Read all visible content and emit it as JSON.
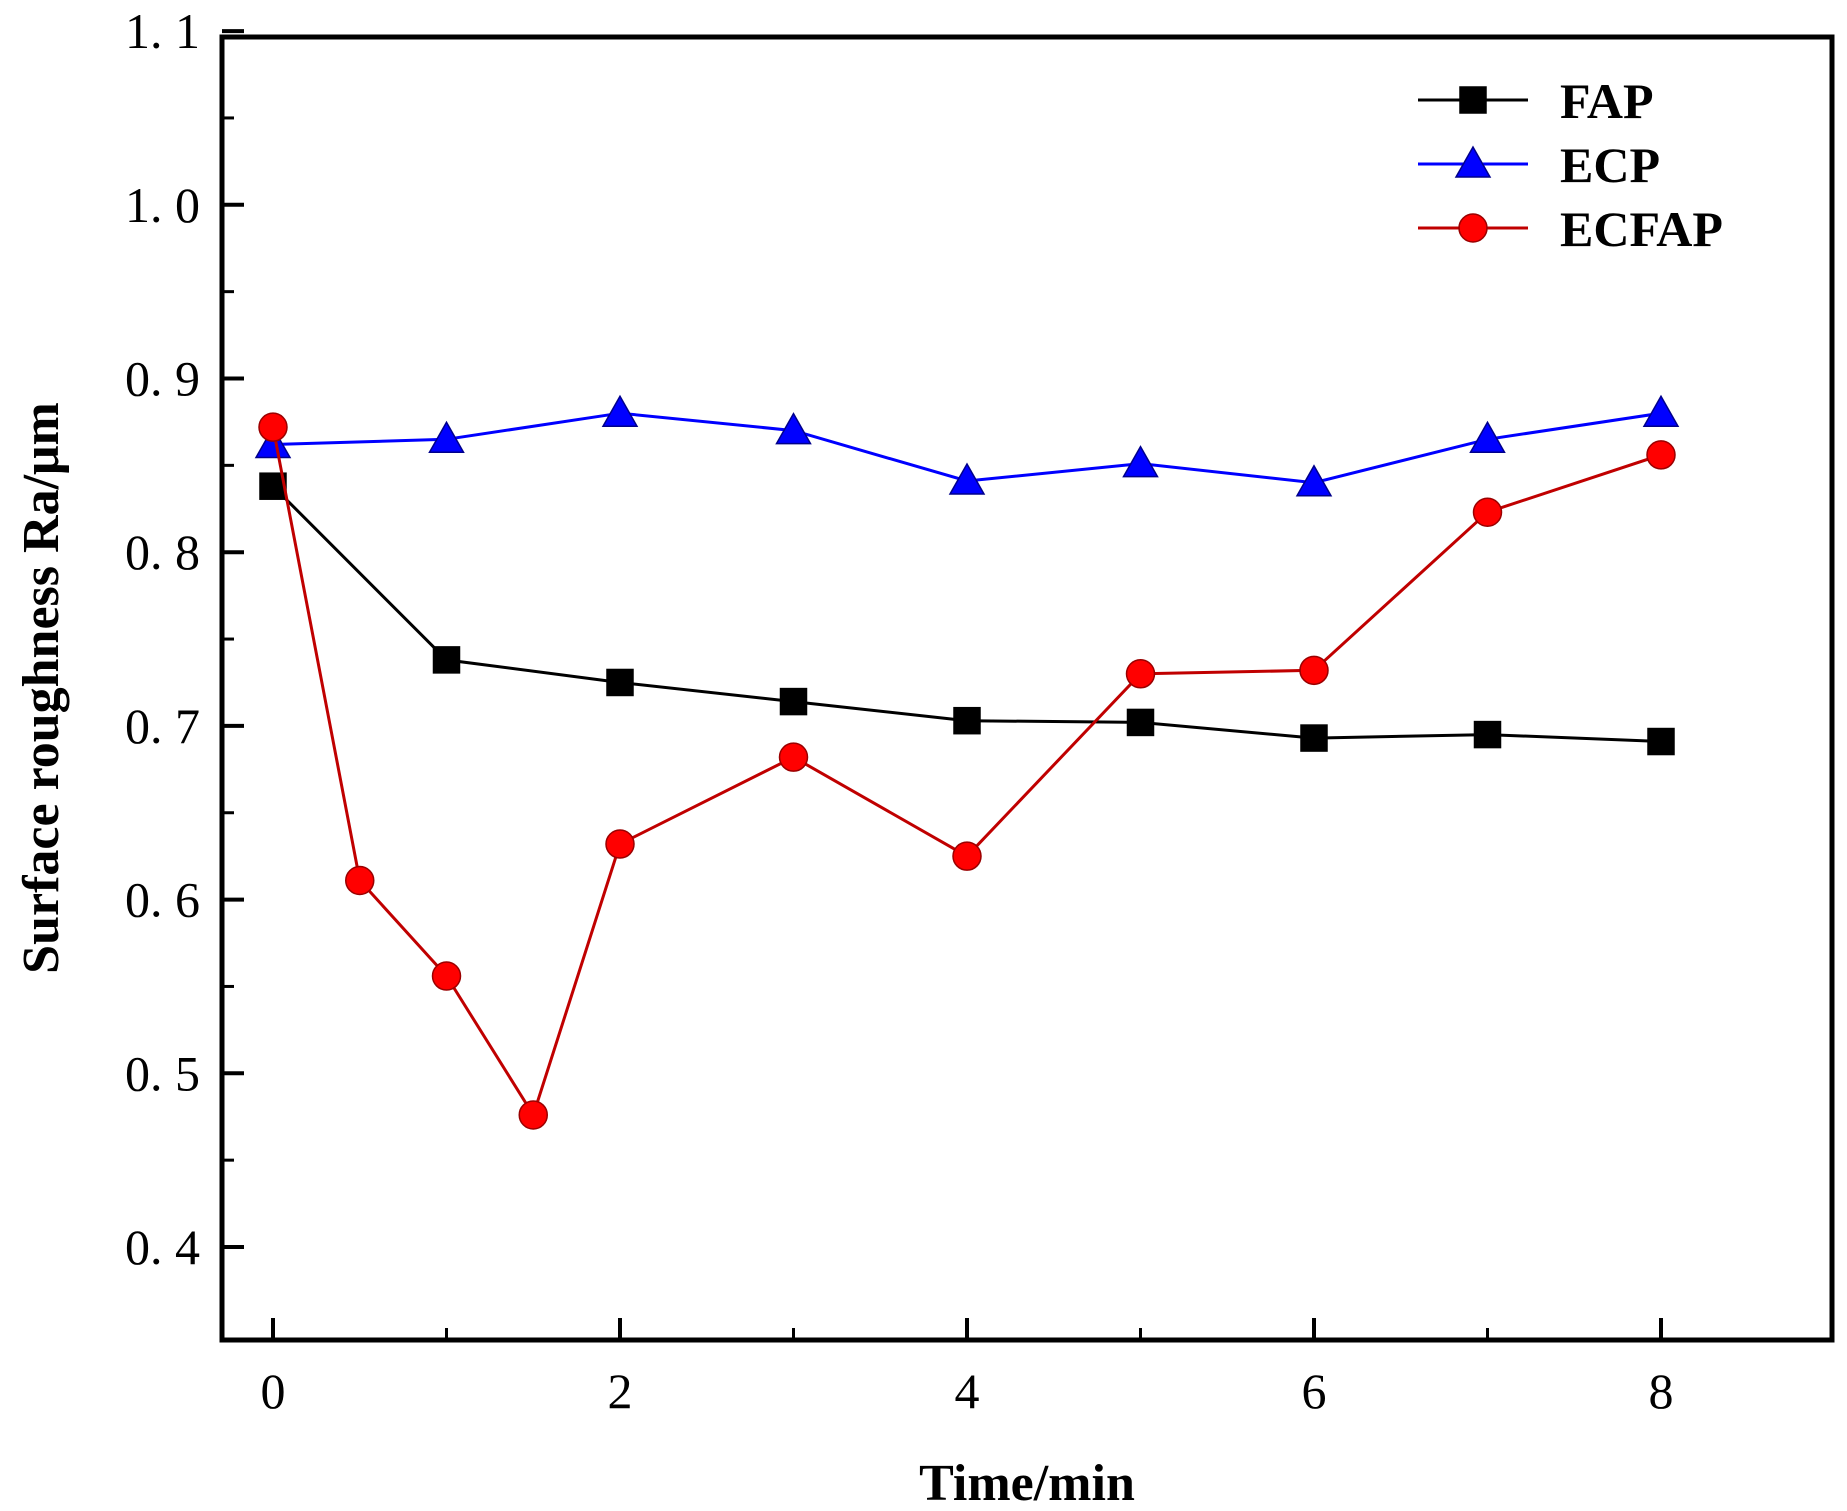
{
  "chart_data": {
    "type": "line",
    "title": "",
    "xlabel": "Time/min",
    "ylabel": "Surface roughness Ra/μm",
    "xlim": [
      -0.3,
      9
    ],
    "ylim": [
      0.35,
      1.1
    ],
    "x_ticks": [
      0,
      2,
      4,
      6,
      8
    ],
    "x_tick_labels": [
      "0",
      "2",
      "4",
      "6",
      "8"
    ],
    "x_minor_ticks": [
      1,
      3,
      5,
      7
    ],
    "y_ticks": [
      0.4,
      0.5,
      0.6,
      0.7,
      0.8,
      0.9,
      1.0,
      1.1
    ],
    "y_tick_labels": [
      "0. 4",
      "0. 5",
      "0. 6",
      "0. 7",
      "0. 8",
      "0. 9",
      "1. 0",
      "1. 1"
    ],
    "y_minor_ticks": [
      0.45,
      0.55,
      0.65,
      0.75,
      0.85,
      0.95,
      1.05
    ],
    "grid": false,
    "legend_position": "top-right",
    "series": [
      {
        "name": "FAP",
        "color": "#000000",
        "marker": "square",
        "x": [
          0,
          1,
          2,
          3,
          4,
          5,
          6,
          7,
          8
        ],
        "values": [
          0.838,
          0.738,
          0.725,
          0.714,
          0.703,
          0.702,
          0.693,
          0.695,
          0.691
        ]
      },
      {
        "name": "ECP",
        "color": "#0000ff",
        "marker": "triangle",
        "x": [
          0,
          1,
          2,
          3,
          4,
          5,
          6,
          7,
          8
        ],
        "values": [
          0.862,
          0.865,
          0.88,
          0.87,
          0.841,
          0.851,
          0.84,
          0.865,
          0.88
        ]
      },
      {
        "name": "ECFAP",
        "color": "#ff0000",
        "stroke": "#c00000",
        "marker": "circle",
        "x": [
          0,
          0.5,
          1,
          1.5,
          2,
          3,
          4,
          5,
          6,
          7,
          8
        ],
        "values": [
          0.872,
          0.611,
          0.556,
          0.476,
          0.632,
          0.682,
          0.625,
          0.73,
          0.732,
          0.823,
          0.856
        ]
      }
    ]
  }
}
